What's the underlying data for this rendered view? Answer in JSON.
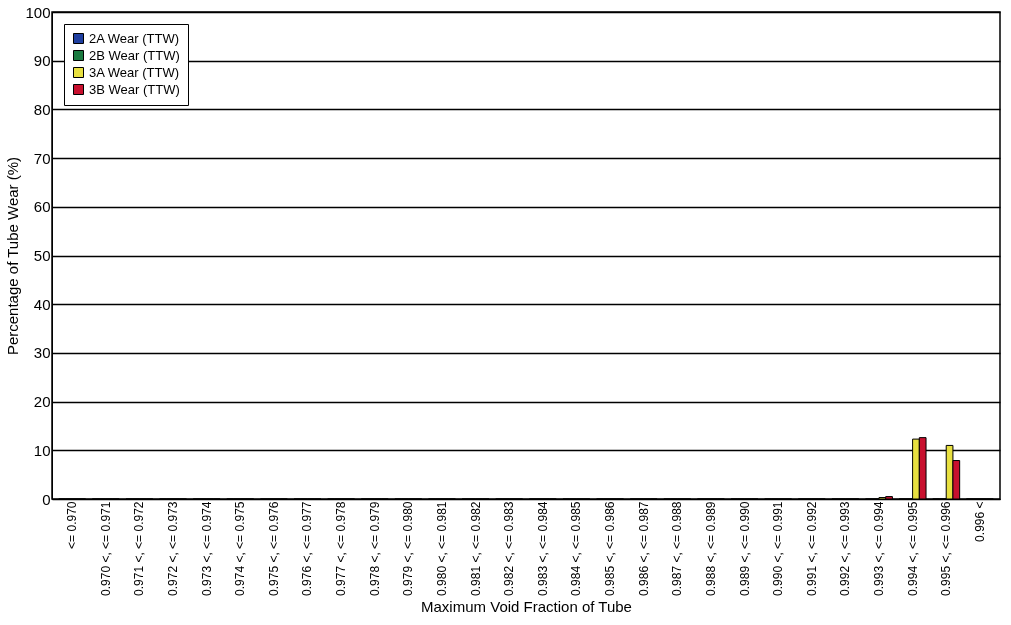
{
  "chart_data": {
    "type": "bar",
    "xlabel": "Maximum Void Fraction of Tube",
    "ylabel": "Percentage of Tube Wear (%)",
    "categories": [
      "<= 0.970",
      "0.970 <, <= 0.971",
      "0.971 <, <= 0.972",
      "0.972 <, <= 0.973",
      "0.973 <, <= 0.974",
      "0.974 <, <= 0.975",
      "0.975 <, <= 0.976",
      "0.976 <, <= 0.977",
      "0.977 <, <= 0.978",
      "0.978 <, <= 0.979",
      "0.979 <, <= 0.980",
      "0.980 <, <= 0.981",
      "0.981 <, <= 0.982",
      "0.982 <, <= 0.983",
      "0.983 <, <= 0.984",
      "0.984 <, <= 0.985",
      "0.985 <, <= 0.986",
      "0.986 <, <= 0.987",
      "0.987 <, <= 0.988",
      "0.988 <, <= 0.989",
      "0.989 <, <= 0.990",
      "0.990 <, <= 0.991",
      "0.991 <, <= 0.992",
      "0.992 <, <= 0.993",
      "0.993 <, <= 0.994",
      "0.994 <, <= 0.995",
      "0.995 <, <= 0.996",
      "0.996 <"
    ],
    "series": [
      {
        "name": "2A Wear (TTW)",
        "color": "#1f3fa0",
        "values": [
          0,
          0,
          0,
          0,
          0,
          0,
          0,
          0,
          0,
          0,
          0,
          0,
          0,
          0,
          0,
          0,
          0,
          0,
          0,
          0,
          0,
          0,
          0,
          0,
          0,
          0,
          0,
          0
        ]
      },
      {
        "name": "2B Wear (TTW)",
        "color": "#1a7a40",
        "values": [
          0,
          0,
          0,
          0,
          0,
          0,
          0,
          0,
          0,
          0,
          0,
          0,
          0,
          0,
          0,
          0,
          0,
          0,
          0,
          0,
          0,
          0,
          0,
          0,
          0,
          0,
          0,
          0
        ]
      },
      {
        "name": "3A Wear (TTW)",
        "color": "#e8e040",
        "values": [
          0,
          0,
          0,
          0,
          0,
          0,
          0,
          0,
          0,
          0,
          0,
          0,
          0,
          0,
          0,
          0,
          0,
          0,
          0,
          0,
          0,
          0,
          0,
          0,
          0.3,
          12.3,
          11,
          0
        ]
      },
      {
        "name": "3B Wear (TTW)",
        "color": "#c8102e",
        "values": [
          0,
          0,
          0,
          0,
          0,
          0,
          0,
          0,
          0,
          0,
          0,
          0,
          0,
          0,
          0,
          0,
          0,
          0,
          0,
          0,
          0,
          0,
          0,
          0,
          0.5,
          12.6,
          7.9,
          0
        ]
      }
    ],
    "ylim": [
      0,
      100
    ],
    "yticks": [
      0,
      10,
      20,
      30,
      40,
      50,
      60,
      70,
      80,
      90,
      100
    ],
    "grid": "y",
    "legend": "top left"
  }
}
